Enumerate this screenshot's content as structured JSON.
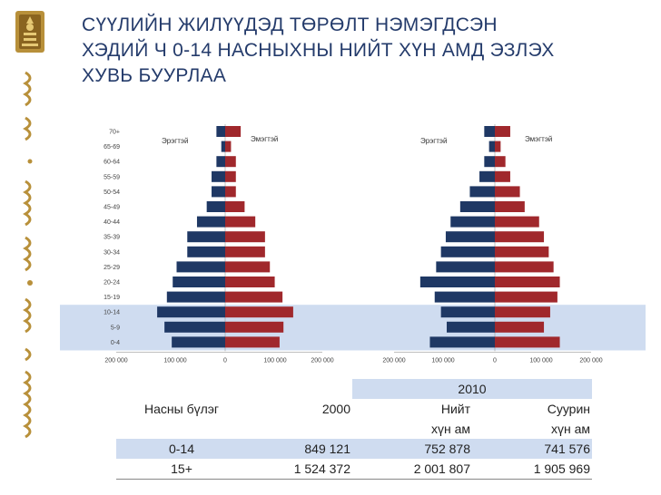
{
  "title_lines": [
    "СҮҮЛИЙН ЖИЛҮҮДЭД ТӨРӨЛТ НЭМЭГДСЭН",
    "ХЭДИЙ Ч 0-14 НАСНЫХНЫ НИЙТ ХҮН АМД ЭЗЛЭХ",
    "ХУВЬ БУУРЛАА"
  ],
  "colors": {
    "male": "#1f3864",
    "female": "#a0282c",
    "highlight": "#cfdcf0",
    "title": "#243b6b",
    "emblem": "#b8903a"
  },
  "emblem": {
    "icon": "soyombo-emblem-icon"
  },
  "chart_data": [
    {
      "type": "bar",
      "orientation": "horizontal-pyramid",
      "age_groups": [
        "0-4",
        "5-9",
        "10-14",
        "15-19",
        "20-24",
        "25-29",
        "30-34",
        "35-39",
        "40-44",
        "45-49",
        "50-54",
        "55-59",
        "60-64",
        "65-69",
        "70+"
      ],
      "x_tick_labels": [
        "200 000",
        "100 000",
        "0",
        "100 000",
        "200 000"
      ],
      "xlim": [
        -200000,
        200000
      ],
      "highlight_groups": [
        "0-4",
        "5-9",
        "10-14"
      ],
      "series": [
        {
          "name": "Эрэгтэй",
          "values": [
            110000,
            125000,
            140000,
            120000,
            108000,
            100000,
            78000,
            78000,
            58000,
            38000,
            28000,
            28000,
            18000,
            8000,
            18000
          ]
        },
        {
          "name": "Эмэгтэй",
          "values": [
            112000,
            120000,
            140000,
            118000,
            102000,
            92000,
            82000,
            82000,
            62000,
            40000,
            22000,
            22000,
            22000,
            12000,
            32000
          ]
        }
      ]
    },
    {
      "type": "bar",
      "orientation": "horizontal-pyramid",
      "age_groups": [
        "0-4",
        "5-9",
        "10-14",
        "15-19",
        "20-24",
        "25-29",
        "30-34",
        "35-39",
        "40-44",
        "45-49",
        "50-54",
        "55-59",
        "60-64",
        "65-69",
        "70+"
      ],
      "x_tick_labels": [
        "200 000",
        "100 000",
        "0",
        "100 000",
        "200 000"
      ],
      "xlim": [
        -200000,
        200000
      ],
      "highlight_groups": [
        "0-4",
        "5-9",
        "10-14"
      ],
      "series": [
        {
          "name": "Эрэгтэй",
          "values": [
            135000,
            100000,
            112000,
            125000,
            155000,
            122000,
            112000,
            102000,
            92000,
            72000,
            52000,
            32000,
            22000,
            12000,
            22000
          ]
        },
        {
          "name": "Эмэгтэй",
          "values": [
            135000,
            102000,
            115000,
            130000,
            135000,
            122000,
            112000,
            102000,
            92000,
            62000,
            52000,
            32000,
            22000,
            12000,
            32000
          ]
        }
      ]
    }
  ],
  "table": {
    "year": "2010",
    "col_age": "Насны бүлэг",
    "col_2000": "2000",
    "col_total": [
      "Нийт",
      "хүн ам"
    ],
    "col_settled": [
      "Суурин",
      "хүн ам"
    ],
    "rows": [
      {
        "age": "0-14",
        "v2000": "849 121",
        "total": "752 878",
        "settled": "741 576"
      },
      {
        "age": "15+",
        "v2000": "1 524 372",
        "total": "2 001 807",
        "settled": "1 905 969"
      }
    ]
  }
}
